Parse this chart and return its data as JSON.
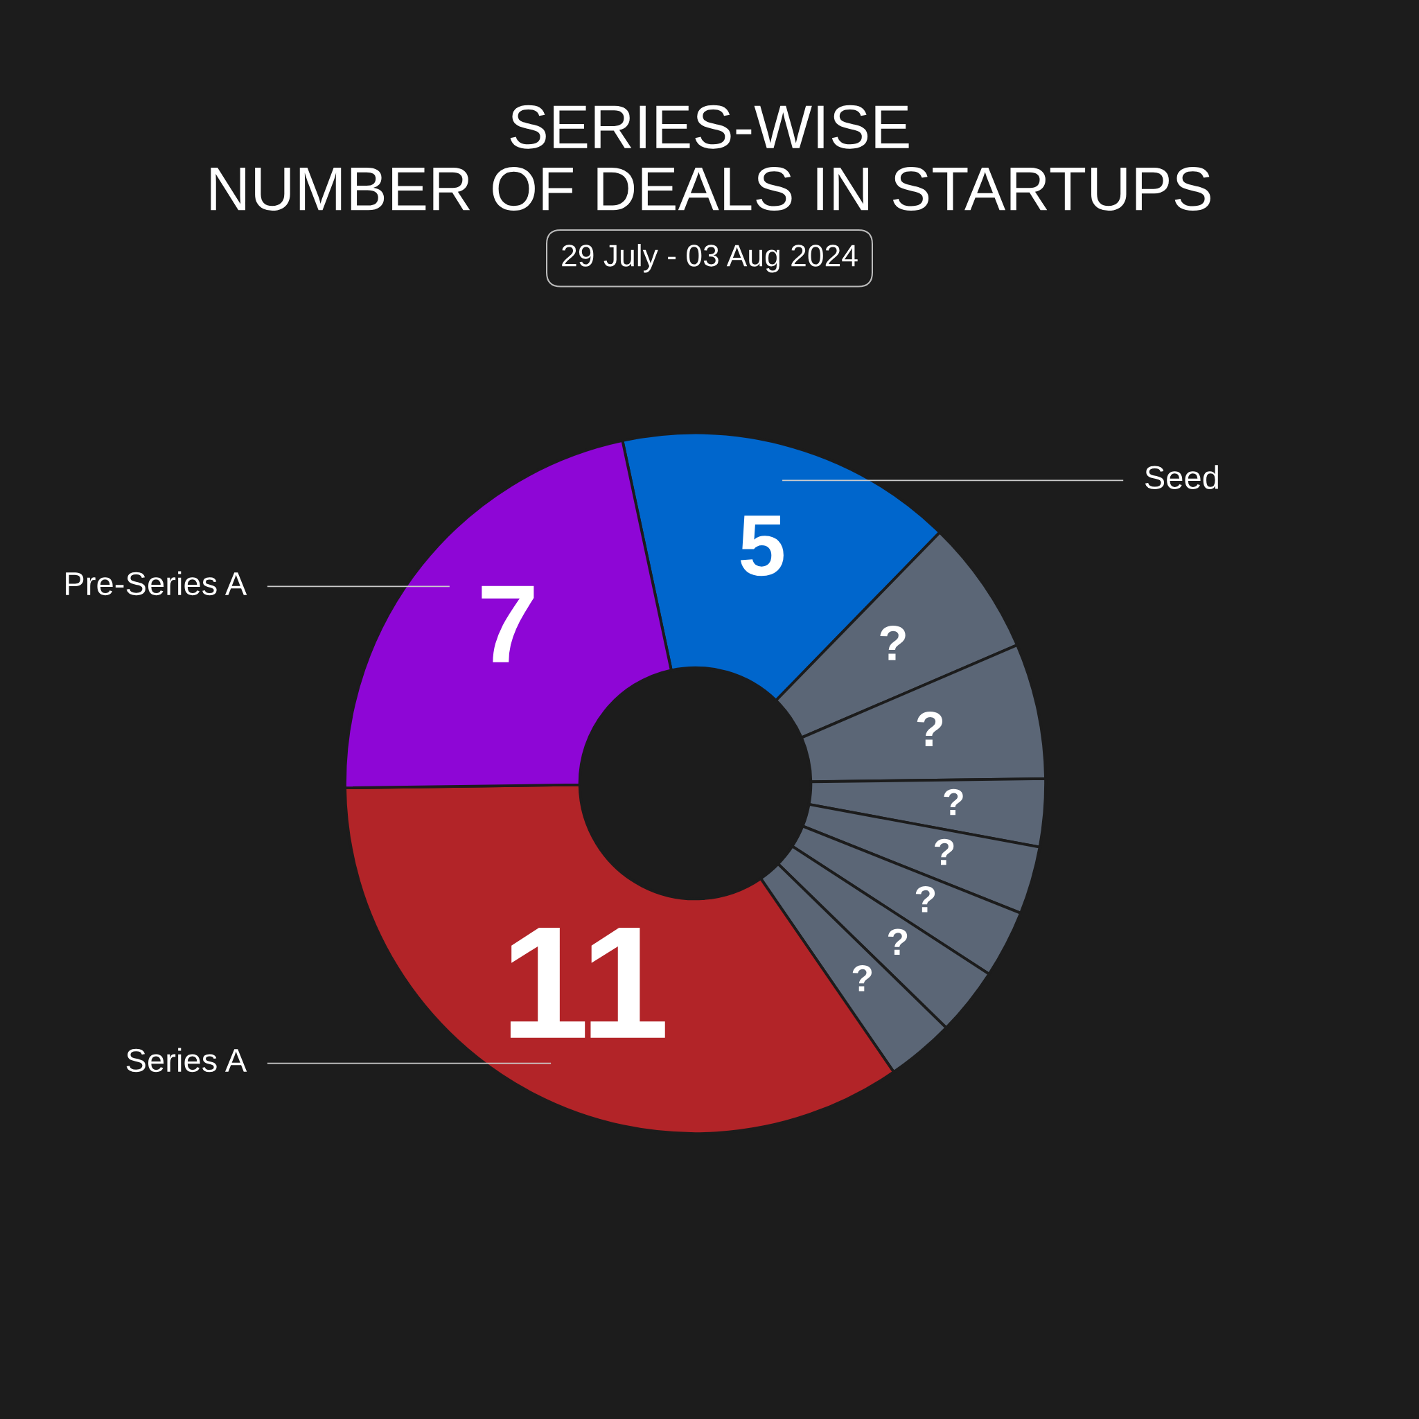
{
  "chart_data": {
    "type": "donut",
    "title": "SERIES-WISE\nNUMBER OF DEALS IN STARTUPS",
    "subtitle": "29 July - 03 Aug 2024",
    "categories": [
      "Seed",
      null,
      null,
      null,
      null,
      null,
      null,
      null,
      "Series A",
      "Pre-Series A"
    ],
    "values": [
      5,
      2,
      2,
      1,
      1,
      1,
      1,
      1,
      11,
      7
    ],
    "value_labels": [
      "5",
      null,
      null,
      null,
      null,
      null,
      null,
      null,
      "11",
      "7"
    ],
    "annotations": [
      "?",
      "?",
      "?",
      "?",
      "?",
      "?",
      "?"
    ],
    "colors": [
      "#0066cc",
      "#5b6676",
      "#5b6676",
      "#5b6676",
      "#5b6676",
      "#5b6676",
      "#5b6676",
      "#5b6676",
      "#b22428",
      "#8e06d6"
    ],
    "legend": false
  }
}
